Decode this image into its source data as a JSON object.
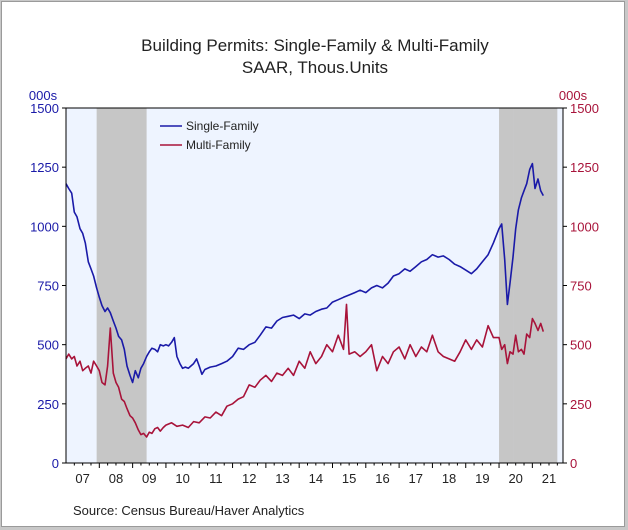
{
  "chart_data": {
    "type": "line",
    "title": "Building Permits: Single-Family & Multi-Family",
    "subtitle": "SAAR, Thous.Units",
    "ylabel_left": "000s",
    "ylabel_right": "000s",
    "ylim": [
      0,
      1500
    ],
    "yticks": [
      0,
      250,
      500,
      750,
      1000,
      1250,
      1500
    ],
    "xlim": [
      2007.0,
      2021.92
    ],
    "xtick_labels": [
      "07",
      "08",
      "09",
      "10",
      "11",
      "12",
      "13",
      "14",
      "15",
      "16",
      "17",
      "18",
      "19",
      "20",
      "21"
    ],
    "recessions": [
      [
        2007.92,
        2009.42
      ],
      [
        2020.0,
        2020.42
      ],
      [
        2020.42,
        2021.75
      ]
    ],
    "legend": "top-left",
    "grid": false,
    "series": [
      {
        "name": "Single-Family",
        "color": "#1a1aa8",
        "axis": "left",
        "points": [
          [
            2007.0,
            1180
          ],
          [
            2007.08,
            1160
          ],
          [
            2007.17,
            1140
          ],
          [
            2007.25,
            1060
          ],
          [
            2007.33,
            1040
          ],
          [
            2007.42,
            990
          ],
          [
            2007.5,
            970
          ],
          [
            2007.58,
            930
          ],
          [
            2007.67,
            850
          ],
          [
            2007.75,
            820
          ],
          [
            2007.83,
            790
          ],
          [
            2007.92,
            740
          ],
          [
            2008.0,
            700
          ],
          [
            2008.08,
            665
          ],
          [
            2008.17,
            640
          ],
          [
            2008.25,
            655
          ],
          [
            2008.33,
            635
          ],
          [
            2008.42,
            600
          ],
          [
            2008.5,
            570
          ],
          [
            2008.58,
            535
          ],
          [
            2008.67,
            520
          ],
          [
            2008.75,
            480
          ],
          [
            2008.83,
            410
          ],
          [
            2008.92,
            370
          ],
          [
            2009.0,
            340
          ],
          [
            2009.08,
            390
          ],
          [
            2009.17,
            360
          ],
          [
            2009.25,
            400
          ],
          [
            2009.33,
            420
          ],
          [
            2009.42,
            450
          ],
          [
            2009.5,
            470
          ],
          [
            2009.58,
            485
          ],
          [
            2009.67,
            480
          ],
          [
            2009.75,
            470
          ],
          [
            2009.83,
            500
          ],
          [
            2009.92,
            495
          ],
          [
            2010.0,
            500
          ],
          [
            2010.08,
            495
          ],
          [
            2010.17,
            510
          ],
          [
            2010.25,
            530
          ],
          [
            2010.33,
            450
          ],
          [
            2010.42,
            420
          ],
          [
            2010.5,
            400
          ],
          [
            2010.58,
            405
          ],
          [
            2010.67,
            400
          ],
          [
            2010.75,
            410
          ],
          [
            2010.83,
            420
          ],
          [
            2010.92,
            440
          ],
          [
            2011.0,
            410
          ],
          [
            2011.08,
            375
          ],
          [
            2011.17,
            395
          ],
          [
            2011.33,
            405
          ],
          [
            2011.5,
            410
          ],
          [
            2011.67,
            420
          ],
          [
            2011.83,
            430
          ],
          [
            2012.0,
            450
          ],
          [
            2012.17,
            485
          ],
          [
            2012.33,
            480
          ],
          [
            2012.5,
            500
          ],
          [
            2012.67,
            510
          ],
          [
            2012.83,
            540
          ],
          [
            2013.0,
            575
          ],
          [
            2013.17,
            570
          ],
          [
            2013.33,
            600
          ],
          [
            2013.5,
            615
          ],
          [
            2013.67,
            620
          ],
          [
            2013.83,
            625
          ],
          [
            2014.0,
            610
          ],
          [
            2014.17,
            630
          ],
          [
            2014.33,
            625
          ],
          [
            2014.5,
            640
          ],
          [
            2014.67,
            650
          ],
          [
            2014.83,
            655
          ],
          [
            2015.0,
            680
          ],
          [
            2015.17,
            690
          ],
          [
            2015.33,
            700
          ],
          [
            2015.5,
            710
          ],
          [
            2015.67,
            720
          ],
          [
            2015.83,
            730
          ],
          [
            2016.0,
            720
          ],
          [
            2016.17,
            740
          ],
          [
            2016.33,
            750
          ],
          [
            2016.5,
            740
          ],
          [
            2016.67,
            760
          ],
          [
            2016.83,
            790
          ],
          [
            2017.0,
            800
          ],
          [
            2017.17,
            820
          ],
          [
            2017.33,
            810
          ],
          [
            2017.5,
            830
          ],
          [
            2017.67,
            850
          ],
          [
            2017.83,
            860
          ],
          [
            2018.0,
            880
          ],
          [
            2018.17,
            870
          ],
          [
            2018.33,
            875
          ],
          [
            2018.5,
            860
          ],
          [
            2018.67,
            840
          ],
          [
            2018.83,
            830
          ],
          [
            2019.0,
            815
          ],
          [
            2019.17,
            800
          ],
          [
            2019.33,
            820
          ],
          [
            2019.5,
            850
          ],
          [
            2019.67,
            880
          ],
          [
            2019.83,
            930
          ],
          [
            2020.0,
            990
          ],
          [
            2020.08,
            1010
          ],
          [
            2020.17,
            860
          ],
          [
            2020.25,
            670
          ],
          [
            2020.33,
            760
          ],
          [
            2020.42,
            870
          ],
          [
            2020.5,
            990
          ],
          [
            2020.58,
            1070
          ],
          [
            2020.67,
            1120
          ],
          [
            2020.75,
            1150
          ],
          [
            2020.83,
            1180
          ],
          [
            2020.92,
            1240
          ],
          [
            2021.0,
            1265
          ],
          [
            2021.08,
            1160
          ],
          [
            2021.17,
            1200
          ],
          [
            2021.25,
            1150
          ],
          [
            2021.33,
            1130
          ]
        ]
      },
      {
        "name": "Multi-Family",
        "color": "#a8133a",
        "axis": "right",
        "points": [
          [
            2007.0,
            440
          ],
          [
            2007.08,
            460
          ],
          [
            2007.17,
            440
          ],
          [
            2007.25,
            450
          ],
          [
            2007.33,
            410
          ],
          [
            2007.42,
            430
          ],
          [
            2007.5,
            390
          ],
          [
            2007.58,
            400
          ],
          [
            2007.67,
            410
          ],
          [
            2007.75,
            380
          ],
          [
            2007.83,
            430
          ],
          [
            2007.92,
            410
          ],
          [
            2008.0,
            390
          ],
          [
            2008.08,
            340
          ],
          [
            2008.17,
            330
          ],
          [
            2008.25,
            410
          ],
          [
            2008.33,
            570
          ],
          [
            2008.42,
            380
          ],
          [
            2008.5,
            340
          ],
          [
            2008.58,
            320
          ],
          [
            2008.67,
            270
          ],
          [
            2008.75,
            260
          ],
          [
            2008.83,
            230
          ],
          [
            2008.92,
            200
          ],
          [
            2009.0,
            190
          ],
          [
            2009.08,
            170
          ],
          [
            2009.17,
            140
          ],
          [
            2009.25,
            120
          ],
          [
            2009.33,
            125
          ],
          [
            2009.42,
            110
          ],
          [
            2009.5,
            130
          ],
          [
            2009.58,
            125
          ],
          [
            2009.67,
            145
          ],
          [
            2009.75,
            150
          ],
          [
            2009.83,
            135
          ],
          [
            2009.92,
            150
          ],
          [
            2010.0,
            160
          ],
          [
            2010.17,
            170
          ],
          [
            2010.33,
            155
          ],
          [
            2010.5,
            160
          ],
          [
            2010.67,
            150
          ],
          [
            2010.83,
            175
          ],
          [
            2011.0,
            170
          ],
          [
            2011.17,
            195
          ],
          [
            2011.33,
            190
          ],
          [
            2011.5,
            215
          ],
          [
            2011.67,
            200
          ],
          [
            2011.83,
            240
          ],
          [
            2012.0,
            250
          ],
          [
            2012.17,
            270
          ],
          [
            2012.33,
            280
          ],
          [
            2012.5,
            330
          ],
          [
            2012.67,
            320
          ],
          [
            2012.83,
            350
          ],
          [
            2013.0,
            370
          ],
          [
            2013.17,
            345
          ],
          [
            2013.33,
            380
          ],
          [
            2013.5,
            370
          ],
          [
            2013.67,
            400
          ],
          [
            2013.83,
            370
          ],
          [
            2014.0,
            430
          ],
          [
            2014.17,
            400
          ],
          [
            2014.33,
            470
          ],
          [
            2014.5,
            420
          ],
          [
            2014.67,
            450
          ],
          [
            2014.83,
            500
          ],
          [
            2015.0,
            470
          ],
          [
            2015.17,
            540
          ],
          [
            2015.33,
            480
          ],
          [
            2015.42,
            670
          ],
          [
            2015.5,
            460
          ],
          [
            2015.67,
            470
          ],
          [
            2015.83,
            450
          ],
          [
            2016.0,
            470
          ],
          [
            2016.17,
            500
          ],
          [
            2016.33,
            390
          ],
          [
            2016.5,
            450
          ],
          [
            2016.67,
            420
          ],
          [
            2016.83,
            470
          ],
          [
            2017.0,
            490
          ],
          [
            2017.17,
            440
          ],
          [
            2017.33,
            500
          ],
          [
            2017.5,
            450
          ],
          [
            2017.67,
            490
          ],
          [
            2017.83,
            470
          ],
          [
            2018.0,
            540
          ],
          [
            2018.17,
            470
          ],
          [
            2018.33,
            450
          ],
          [
            2018.5,
            440
          ],
          [
            2018.67,
            430
          ],
          [
            2018.83,
            470
          ],
          [
            2019.0,
            520
          ],
          [
            2019.17,
            480
          ],
          [
            2019.33,
            520
          ],
          [
            2019.5,
            490
          ],
          [
            2019.67,
            580
          ],
          [
            2019.83,
            530
          ],
          [
            2020.0,
            530
          ],
          [
            2020.08,
            480
          ],
          [
            2020.17,
            500
          ],
          [
            2020.25,
            420
          ],
          [
            2020.33,
            470
          ],
          [
            2020.42,
            460
          ],
          [
            2020.5,
            540
          ],
          [
            2020.58,
            470
          ],
          [
            2020.67,
            480
          ],
          [
            2020.75,
            460
          ],
          [
            2020.83,
            545
          ],
          [
            2020.92,
            530
          ],
          [
            2021.0,
            610
          ],
          [
            2021.08,
            590
          ],
          [
            2021.17,
            560
          ],
          [
            2021.25,
            590
          ],
          [
            2021.33,
            555
          ]
        ]
      }
    ]
  },
  "source": "Source:  Census Bureau/Haver Analytics",
  "colors": {
    "plot_bg": "#eef4ff",
    "recession": "#c6c6c6",
    "left_axis": "#1a1aa8",
    "right_axis": "#a8133a"
  }
}
